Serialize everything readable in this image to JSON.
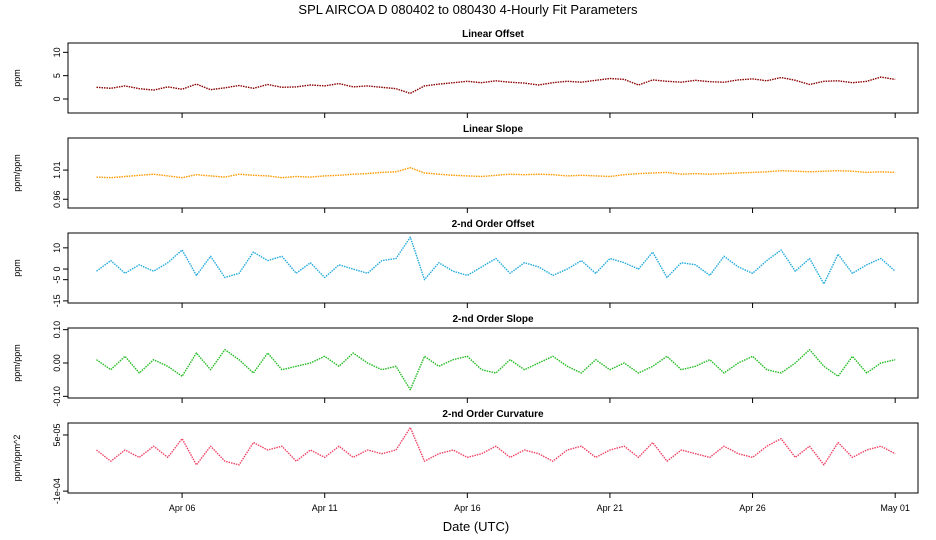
{
  "title": "SPL   AIRCOA D   080402 to 080430   4-Hourly Fit Parameters",
  "xlabel": "Date (UTC)",
  "x_ticks": [
    {
      "label": "Apr 06",
      "day": 6
    },
    {
      "label": "Apr 11",
      "day": 11
    },
    {
      "label": "Apr 16",
      "day": 16
    },
    {
      "label": "Apr 21",
      "day": 21
    },
    {
      "label": "Apr 26",
      "day": 26
    },
    {
      "label": "May 01",
      "day": 31
    }
  ],
  "colors": {
    "linear_offset": "#8b0000",
    "linear_slope": "#ff9900",
    "second_offset": "#22aadd",
    "second_slope": "#22bb22",
    "second_curvature": "#ee4466"
  },
  "chart_data": [
    {
      "type": "line",
      "title": "Linear Offset",
      "ylabel": "ppm",
      "ylim": [
        -3,
        12
      ],
      "yticks": [
        {
          "v": 0,
          "label": "0"
        },
        {
          "v": 5,
          "label": "5"
        },
        {
          "v": 10,
          "label": "10"
        }
      ],
      "color_key": "linear_offset",
      "x": [
        3,
        3.5,
        4,
        4.5,
        5,
        5.5,
        6,
        6.5,
        7,
        7.5,
        8,
        8.5,
        9,
        9.5,
        10,
        10.5,
        11,
        11.5,
        12,
        12.5,
        13,
        13.5,
        14,
        14.5,
        15,
        15.5,
        16,
        16.5,
        17,
        17.5,
        18,
        18.5,
        19,
        19.5,
        20,
        20.5,
        21,
        21.5,
        22,
        22.5,
        23,
        23.5,
        24,
        24.5,
        25,
        25.5,
        26,
        26.5,
        27,
        27.5,
        28,
        28.5,
        29,
        29.5,
        30,
        30.5,
        31
      ],
      "y": [
        2.5,
        2.3,
        2.8,
        2.2,
        1.9,
        2.6,
        2.1,
        3.2,
        2.0,
        2.4,
        2.9,
        2.3,
        3.1,
        2.5,
        2.6,
        3.0,
        2.8,
        3.3,
        2.6,
        2.8,
        2.5,
        2.2,
        1.2,
        2.8,
        3.2,
        3.5,
        3.8,
        3.5,
        3.9,
        3.6,
        3.4,
        3.0,
        3.5,
        3.8,
        3.6,
        4.0,
        4.4,
        4.2,
        3.0,
        4.1,
        3.8,
        3.6,
        4.0,
        3.7,
        3.6,
        4.1,
        4.3,
        3.9,
        4.6,
        4.0,
        3.1,
        3.8,
        3.9,
        3.5,
        3.8,
        4.7,
        4.2
      ]
    },
    {
      "type": "line",
      "title": "Linear Slope",
      "ylabel": "ppm/ppm",
      "ylim": [
        0.945,
        1.065
      ],
      "yticks": [
        {
          "v": 0.96,
          "label": "0.96"
        },
        {
          "v": 1.01,
          "label": "1.01"
        }
      ],
      "color_key": "linear_slope",
      "x": [
        3,
        3.5,
        4,
        4.5,
        5,
        5.5,
        6,
        6.5,
        7,
        7.5,
        8,
        8.5,
        9,
        9.5,
        10,
        10.5,
        11,
        11.5,
        12,
        12.5,
        13,
        13.5,
        14,
        14.5,
        15,
        15.5,
        16,
        16.5,
        17,
        17.5,
        18,
        18.5,
        19,
        19.5,
        20,
        20.5,
        21,
        21.5,
        22,
        22.5,
        23,
        23.5,
        24,
        24.5,
        25,
        25.5,
        26,
        26.5,
        27,
        27.5,
        28,
        28.5,
        29,
        29.5,
        30,
        30.5,
        31
      ],
      "y": [
        0.998,
        0.997,
        0.999,
        1.001,
        1.003,
        1.0,
        0.997,
        1.002,
        1.0,
        0.998,
        1.003,
        1.001,
        1.0,
        0.997,
        0.999,
        0.998,
        1.0,
        1.001,
        1.003,
        1.004,
        1.006,
        1.007,
        1.014,
        1.005,
        1.003,
        1.001,
        1.0,
        0.999,
        1.001,
        1.003,
        1.002,
        1.003,
        1.002,
        1.0,
        1.001,
        1.0,
        0.999,
        1.002,
        1.004,
        1.005,
        1.006,
        1.003,
        1.004,
        1.003,
        1.004,
        1.005,
        1.006,
        1.007,
        1.009,
        1.008,
        1.007,
        1.008,
        1.009,
        1.008,
        1.006,
        1.007,
        1.006
      ]
    },
    {
      "type": "line",
      "title": "2-nd Order Offset",
      "ylabel": "ppm",
      "ylim": [
        -16,
        17
      ],
      "yticks": [
        {
          "v": -15,
          "label": "-15"
        },
        {
          "v": -5,
          "label": "-5"
        },
        {
          "v": 0,
          "label": "0"
        },
        {
          "v": 10,
          "label": "10"
        }
      ],
      "color_key": "second_offset",
      "x": [
        3,
        3.5,
        4,
        4.5,
        5,
        5.5,
        6,
        6.5,
        7,
        7.5,
        8,
        8.5,
        9,
        9.5,
        10,
        10.5,
        11,
        11.5,
        12,
        12.5,
        13,
        13.5,
        14,
        14.5,
        15,
        15.5,
        16,
        16.5,
        17,
        17.5,
        18,
        18.5,
        19,
        19.5,
        20,
        20.5,
        21,
        21.5,
        22,
        22.5,
        23,
        23.5,
        24,
        24.5,
        25,
        25.5,
        26,
        26.5,
        27,
        27.5,
        28,
        28.5,
        29,
        29.5,
        30,
        30.5,
        31
      ],
      "y": [
        -1,
        4,
        -2,
        2,
        -1,
        3,
        9,
        -3,
        6,
        -4,
        -2,
        8,
        4,
        6,
        -2,
        3,
        -4,
        2,
        0,
        -2,
        4,
        5,
        15,
        -5,
        3,
        -1,
        -3,
        1,
        5,
        -2,
        3,
        1,
        -3,
        0,
        4,
        -2,
        5,
        3,
        0,
        8,
        -4,
        3,
        2,
        -3,
        6,
        1,
        -2,
        4,
        9,
        -1,
        5,
        -7,
        7,
        -2,
        2,
        5,
        -1
      ]
    },
    {
      "type": "line",
      "title": "2-nd Order Slope",
      "ylabel": "ppm/ppm",
      "ylim": [
        -0.105,
        0.105
      ],
      "yticks": [
        {
          "v": -0.1,
          "label": "-0.10"
        },
        {
          "v": 0,
          "label": "0.00"
        },
        {
          "v": 0.1,
          "label": "0.10"
        }
      ],
      "color_key": "second_slope",
      "x": [
        3,
        3.5,
        4,
        4.5,
        5,
        5.5,
        6,
        6.5,
        7,
        7.5,
        8,
        8.5,
        9,
        9.5,
        10,
        10.5,
        11,
        11.5,
        12,
        12.5,
        13,
        13.5,
        14,
        14.5,
        15,
        15.5,
        16,
        16.5,
        17,
        17.5,
        18,
        18.5,
        19,
        19.5,
        20,
        20.5,
        21,
        21.5,
        22,
        22.5,
        23,
        23.5,
        24,
        24.5,
        25,
        25.5,
        26,
        26.5,
        27,
        27.5,
        28,
        28.5,
        29,
        29.5,
        30,
        30.5,
        31
      ],
      "y": [
        0.01,
        -0.02,
        0.02,
        -0.03,
        0.01,
        -0.01,
        -0.04,
        0.03,
        -0.02,
        0.04,
        0.01,
        -0.03,
        0.03,
        -0.02,
        -0.01,
        0.0,
        0.02,
        -0.01,
        0.03,
        0.0,
        -0.02,
        -0.01,
        -0.08,
        0.02,
        -0.01,
        0.01,
        0.02,
        -0.02,
        -0.03,
        0.01,
        -0.02,
        0.0,
        0.02,
        -0.01,
        -0.03,
        0.01,
        -0.02,
        0.0,
        -0.03,
        -0.01,
        0.02,
        -0.02,
        -0.01,
        0.01,
        -0.03,
        0.0,
        0.02,
        -0.02,
        -0.03,
        0.0,
        0.04,
        -0.01,
        -0.04,
        0.02,
        -0.03,
        0.0,
        0.01
      ]
    },
    {
      "type": "line",
      "title": "2-nd Order Curvature",
      "ylabel": "ppm/ppm^2",
      "ylim": [
        -0.000105,
        8.2e-05
      ],
      "yticks": [
        {
          "v": -0.0001,
          "label": "-1e-04"
        },
        {
          "v": 5e-05,
          "label": "5e-05"
        }
      ],
      "color_key": "second_curvature",
      "x": [
        3,
        3.5,
        4,
        4.5,
        5,
        5.5,
        6,
        6.5,
        7,
        7.5,
        8,
        8.5,
        9,
        9.5,
        10,
        10.5,
        11,
        11.5,
        12,
        12.5,
        13,
        13.5,
        14,
        14.5,
        15,
        15.5,
        16,
        16.5,
        17,
        17.5,
        18,
        18.5,
        19,
        19.5,
        20,
        20.5,
        21,
        21.5,
        22,
        22.5,
        23,
        23.5,
        24,
        24.5,
        25,
        25.5,
        26,
        26.5,
        27,
        27.5,
        28,
        28.5,
        29,
        29.5,
        30,
        30.5,
        31
      ],
      "y": [
        1e-05,
        -2e-05,
        1e-05,
        -1e-05,
        2e-05,
        -1e-05,
        4e-05,
        -3e-05,
        2e-05,
        -2e-05,
        -3e-05,
        3e-05,
        1e-05,
        2e-05,
        -2e-05,
        1e-05,
        -1e-05,
        2e-05,
        -1e-05,
        1e-05,
        0.0,
        1e-05,
        7e-05,
        -2e-05,
        0.0,
        1e-05,
        -1e-05,
        0.0,
        2e-05,
        -1e-05,
        1e-05,
        0.0,
        -2e-05,
        1e-05,
        2e-05,
        -1e-05,
        1e-05,
        2e-05,
        -1e-05,
        3e-05,
        -2e-05,
        1e-05,
        0.0,
        -1e-05,
        2e-05,
        0.0,
        -1e-05,
        2e-05,
        4e-05,
        -1e-05,
        2e-05,
        -3e-05,
        3e-05,
        -1e-05,
        1e-05,
        2e-05,
        0.0
      ]
    }
  ]
}
